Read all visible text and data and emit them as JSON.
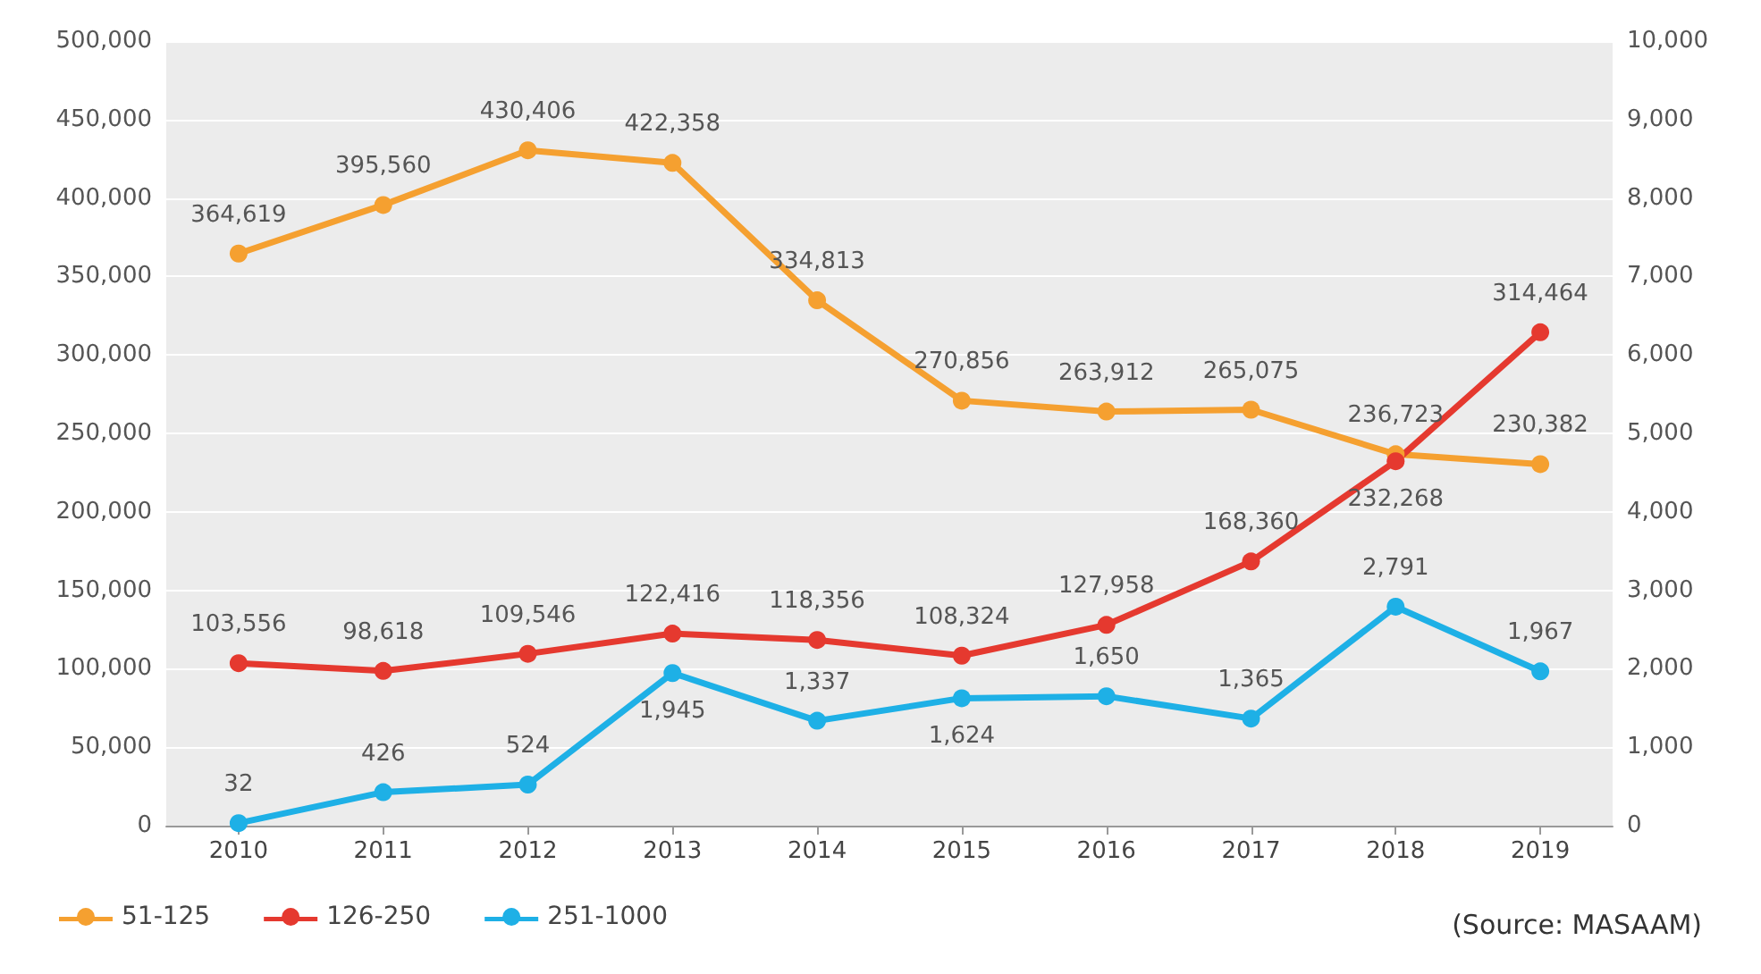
{
  "chart_data": {
    "type": "line",
    "categories": [
      "2010",
      "2011",
      "2012",
      "2013",
      "2014",
      "2015",
      "2016",
      "2017",
      "2018",
      "2019"
    ],
    "series": [
      {
        "name": "51-125",
        "color": "#f5a030",
        "values": [
          364619,
          395560,
          430406,
          422358,
          334813,
          270856,
          263912,
          265075,
          236723,
          230382
        ],
        "value_labels": [
          "364,619",
          "395,560",
          "430,406",
          "422,358",
          "334,813",
          "270,856",
          "263,912",
          "265,075",
          "236,723",
          "230,382"
        ]
      },
      {
        "name": "126-250",
        "color": "#e5392f",
        "values": [
          103556,
          98618,
          109546,
          122416,
          118356,
          108324,
          127958,
          168360,
          232268,
          314464
        ],
        "value_labels": [
          "103,556",
          "98,618",
          "109,546",
          "122,416",
          "118,356",
          "108,324",
          "127,958",
          "168,360",
          "232,268",
          "314,464"
        ]
      },
      {
        "name": "251-1000",
        "color": "#1eb0e6",
        "axis": "y2",
        "values": [
          32,
          426,
          524,
          1945,
          1337,
          1624,
          1650,
          1365,
          2791,
          1967
        ],
        "value_labels": [
          "32",
          "426",
          "524",
          "1,945",
          "1,337",
          "1,624",
          "1,650",
          "1,365",
          "2,791",
          "1,967"
        ]
      }
    ],
    "ylim": [
      0,
      500000
    ],
    "yticks": [
      0,
      {
        "value": 50000,
        "label": "50,000"
      },
      {
        "value": 100000,
        "label": "100,000"
      },
      {
        "value": 150000,
        "label": "150,000"
      },
      {
        "value": 200000,
        "label": "200,000"
      },
      {
        "value": 250000,
        "label": "250,000"
      },
      {
        "value": 300000,
        "label": "300,000"
      },
      {
        "value": 350000,
        "label": "350,000"
      },
      {
        "value": 400000,
        "label": "400,000"
      },
      {
        "value": 450000,
        "label": "450,000"
      },
      {
        "value": 500000,
        "label": "500,000"
      }
    ],
    "y2lim": [
      0,
      10000
    ],
    "y2ticks": [
      0,
      {
        "value": 1000,
        "label": "1,000"
      },
      {
        "value": 2000,
        "label": "2,000"
      },
      {
        "value": 3000,
        "label": "3,000"
      },
      {
        "value": 4000,
        "label": "4,000"
      },
      {
        "value": 5000,
        "label": "5,000"
      },
      {
        "value": 6000,
        "label": "6,000"
      },
      {
        "value": 7000,
        "label": "7,000"
      },
      {
        "value": 8000,
        "label": "8,000"
      },
      {
        "value": 9000,
        "label": "9,000"
      },
      {
        "value": 10000,
        "label": "10,000"
      }
    ],
    "grid": "y",
    "legend": "bottom left",
    "marker": "circle",
    "line_style": "solid",
    "annotations": [
      "(Source: MASAAM)"
    ]
  }
}
